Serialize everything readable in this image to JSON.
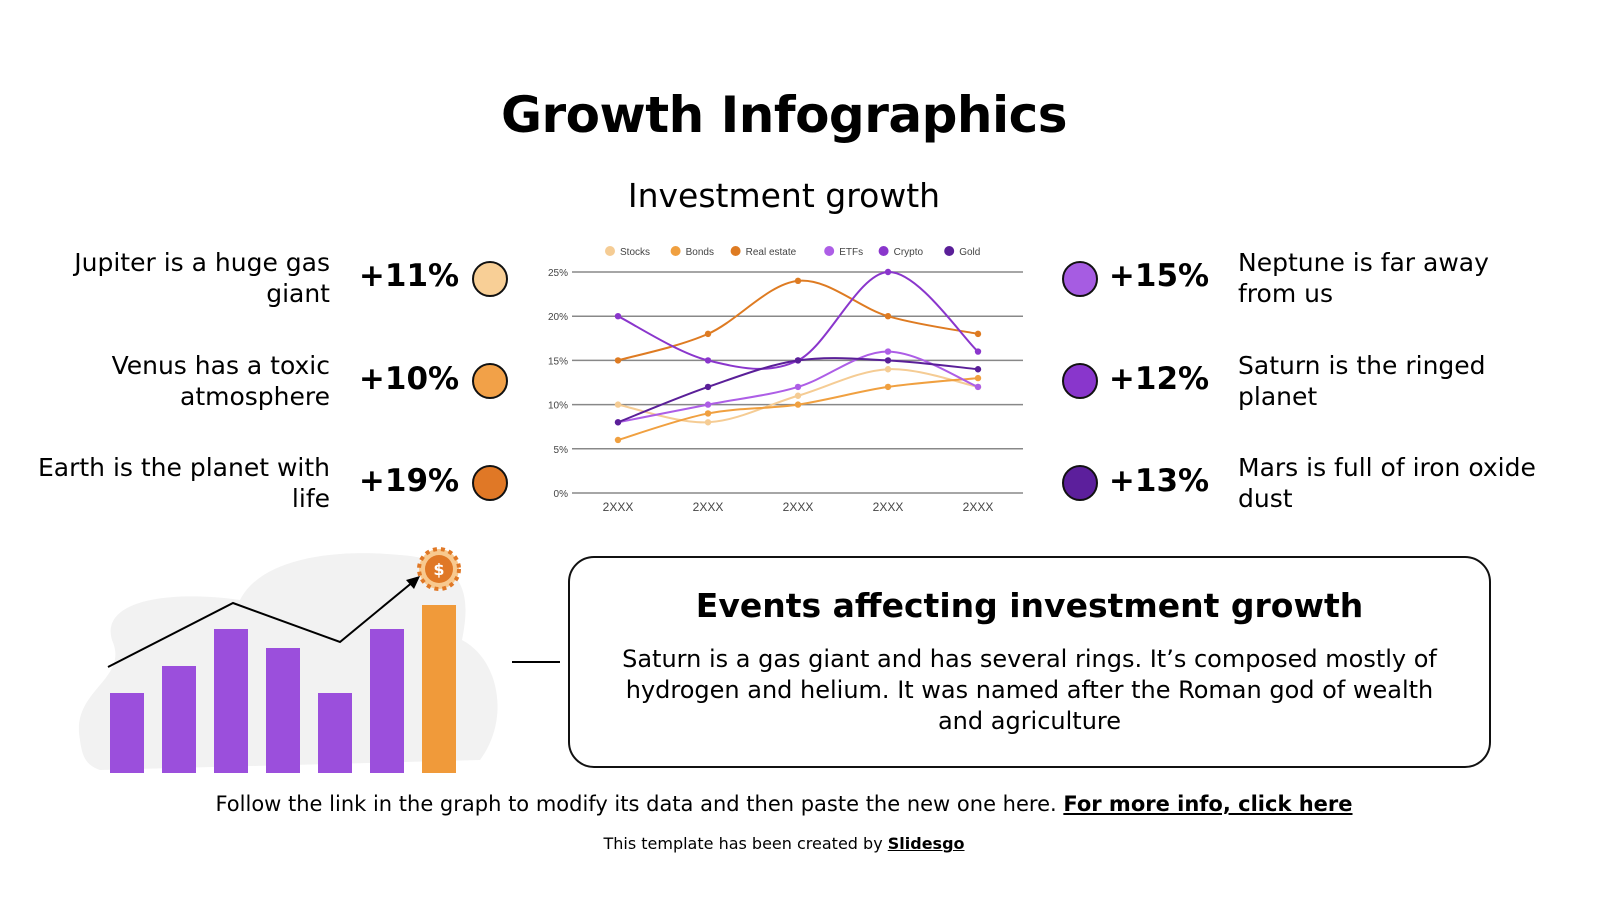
{
  "title": "Growth Infographics",
  "subtitle": "Investment growth",
  "left_items": [
    {
      "text": "Jupiter is a huge gas giant",
      "value": "+11%",
      "color": "#f8cf96"
    },
    {
      "text": "Venus has a toxic atmosphere",
      "value": "+10%",
      "color": "#f2a148"
    },
    {
      "text": "Earth is the planet with life",
      "value": "+19%",
      "color": "#e07826"
    }
  ],
  "right_items": [
    {
      "text": "Neptune is far away from us",
      "value": "+15%",
      "color": "#a65ce2"
    },
    {
      "text": "Saturn is the ringed planet",
      "value": "+12%",
      "color": "#8936cc"
    },
    {
      "text": "Mars is full of iron oxide dust",
      "value": "+13%",
      "color": "#5c1f9c"
    }
  ],
  "chart_data": {
    "type": "line",
    "title": "",
    "xlabel": "",
    "ylabel": "",
    "categories": [
      "2XXX",
      "2XXX",
      "2XXX",
      "2XXX",
      "2XXX"
    ],
    "yticks": [
      "0%",
      "5%",
      "10%",
      "15%",
      "20%",
      "25%"
    ],
    "ylim": [
      0,
      25
    ],
    "grid": true,
    "legend": "top",
    "series": [
      {
        "name": "Stocks",
        "color": "#f5cc94",
        "values": [
          10,
          8,
          11,
          14,
          12
        ]
      },
      {
        "name": "Bonds",
        "color": "#f0a040",
        "values": [
          6,
          9,
          10,
          12,
          13
        ]
      },
      {
        "name": "Real estate",
        "color": "#de7b22",
        "values": [
          15,
          18,
          24,
          20,
          18
        ]
      },
      {
        "name": "ETFs",
        "color": "#ad5ee6",
        "values": [
          8,
          10,
          12,
          16,
          12
        ]
      },
      {
        "name": "Crypto",
        "color": "#8a36cc",
        "values": [
          20,
          15,
          15,
          25,
          16
        ]
      },
      {
        "name": "Gold",
        "color": "#5a1f98",
        "values": [
          8,
          12,
          15,
          15,
          14
        ]
      }
    ]
  },
  "illustration": {
    "dollar_sign": "$",
    "bar_color": "#9b4fdc",
    "highlight_color": "#f09a3a"
  },
  "events_box": {
    "title": "Events affecting investment growth",
    "body": "Saturn is a gas giant and has several rings. It’s composed mostly of hydrogen and helium. It was named after the Roman god of wealth and agriculture"
  },
  "footer": {
    "text": "Follow the link in the graph to modify its data and then paste the new one here. ",
    "link": "For more info, click here"
  },
  "credit": {
    "text": "This template has been created by ",
    "link": "Slidesgo"
  }
}
